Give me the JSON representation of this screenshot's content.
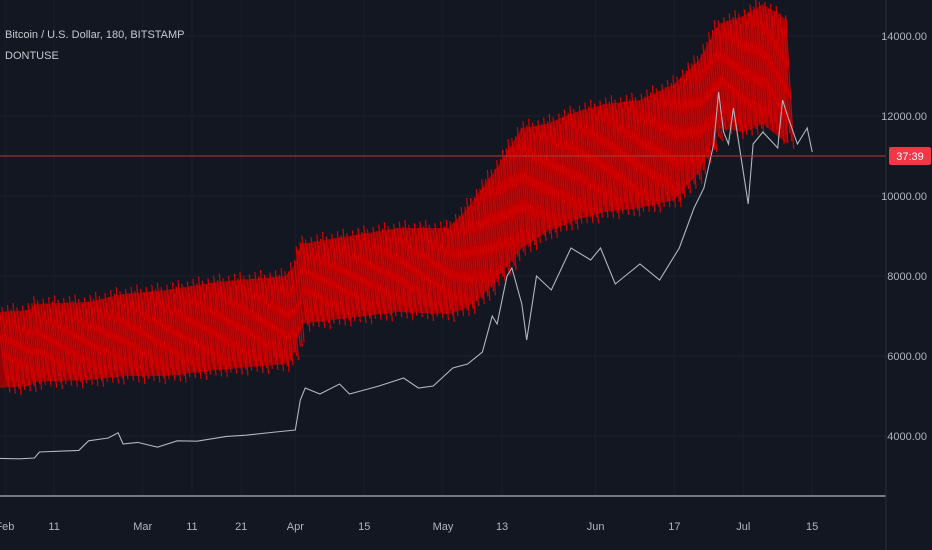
{
  "header": {
    "symbol_title": "Bitcoin / U.S. Dollar, 180, BITSTAMP",
    "indicator_name": "DONTUSE"
  },
  "price_tag": {
    "label": "37:39",
    "color": "#f23645"
  },
  "chart_data": {
    "type": "line",
    "ylim": [
      2500,
      14900
    ],
    "yticks": [
      4000,
      6000,
      8000,
      10000,
      12000,
      14000
    ],
    "ytick_labels": [
      "4000.00",
      "6000.00",
      "8000.00",
      "10000.00",
      "12000.00",
      "14000.00"
    ],
    "x_ticks": [
      {
        "label": "Feb",
        "date": "2019-02-01"
      },
      {
        "label": "11",
        "date": "2019-02-11"
      },
      {
        "label": "Mar",
        "date": "2019-03-01"
      },
      {
        "label": "11",
        "date": "2019-03-11"
      },
      {
        "label": "21",
        "date": "2019-03-21"
      },
      {
        "label": "Apr",
        "date": "2019-04-01"
      },
      {
        "label": "15",
        "date": "2019-04-15"
      },
      {
        "label": "May",
        "date": "2019-05-01"
      },
      {
        "label": "13",
        "date": "2019-05-13"
      },
      {
        "label": "Jun",
        "date": "2019-06-01"
      },
      {
        "label": "17",
        "date": "2019-06-17"
      },
      {
        "label": "Jul",
        "date": "2019-07-01"
      },
      {
        "label": "15",
        "date": "2019-07-15"
      }
    ],
    "xlim": [
      "2019-01-31",
      "2019-07-30"
    ],
    "current_price": 11000,
    "series": [
      {
        "color": "#b2b5be",
        "points": [
          [
            "2019-01-31",
            3440
          ],
          [
            "2019-02-04",
            3430
          ],
          [
            "2019-02-07",
            3450
          ],
          [
            "2019-02-08",
            3600
          ],
          [
            "2019-02-12",
            3620
          ],
          [
            "2019-02-16",
            3640
          ],
          [
            "2019-02-18",
            3880
          ],
          [
            "2019-02-22",
            3950
          ],
          [
            "2019-02-24",
            4080
          ],
          [
            "2019-02-25",
            3800
          ],
          [
            "2019-02-28",
            3840
          ],
          [
            "2019-03-04",
            3720
          ],
          [
            "2019-03-08",
            3880
          ],
          [
            "2019-03-12",
            3870
          ],
          [
            "2019-03-18",
            3990
          ],
          [
            "2019-03-22",
            4020
          ],
          [
            "2019-03-28",
            4100
          ],
          [
            "2019-04-01",
            4150
          ],
          [
            "2019-04-02",
            4900
          ],
          [
            "2019-04-03",
            5200
          ],
          [
            "2019-04-06",
            5050
          ],
          [
            "2019-04-10",
            5300
          ],
          [
            "2019-04-12",
            5050
          ],
          [
            "2019-04-18",
            5250
          ],
          [
            "2019-04-23",
            5450
          ],
          [
            "2019-04-26",
            5200
          ],
          [
            "2019-04-29",
            5250
          ],
          [
            "2019-05-03",
            5700
          ],
          [
            "2019-05-06",
            5800
          ],
          [
            "2019-05-09",
            6100
          ],
          [
            "2019-05-11",
            7000
          ],
          [
            "2019-05-12",
            6800
          ],
          [
            "2019-05-14",
            8000
          ],
          [
            "2019-05-15",
            8200
          ],
          [
            "2019-05-17",
            7300
          ],
          [
            "2019-05-18",
            6400
          ],
          [
            "2019-05-20",
            8000
          ],
          [
            "2019-05-23",
            7650
          ],
          [
            "2019-05-27",
            8700
          ],
          [
            "2019-05-31",
            8400
          ],
          [
            "2019-06-02",
            8700
          ],
          [
            "2019-06-05",
            7800
          ],
          [
            "2019-06-07",
            8000
          ],
          [
            "2019-06-10",
            8300
          ],
          [
            "2019-06-14",
            7900
          ],
          [
            "2019-06-18",
            8700
          ],
          [
            "2019-06-21",
            9700
          ],
          [
            "2019-06-23",
            10200
          ],
          [
            "2019-06-25",
            11300
          ],
          [
            "2019-06-26",
            12600
          ],
          [
            "2019-06-27",
            11600
          ],
          [
            "2019-06-28",
            11300
          ],
          [
            "2019-06-29",
            12200
          ],
          [
            "2019-07-01",
            10600
          ],
          [
            "2019-07-02",
            9800
          ],
          [
            "2019-07-03",
            11300
          ],
          [
            "2019-07-05",
            11600
          ],
          [
            "2019-07-08",
            11200
          ],
          [
            "2019-07-09",
            12400
          ],
          [
            "2019-07-10",
            12000
          ],
          [
            "2019-07-12",
            11300
          ],
          [
            "2019-07-14",
            11700
          ],
          [
            "2019-07-15",
            11100
          ]
        ]
      },
      {
        "type": "band",
        "color": "#c20000",
        "points": [
          [
            "2019-01-31",
            5200,
            7100
          ],
          [
            "2019-02-06",
            5250,
            7150
          ],
          [
            "2019-02-07",
            5350,
            7300
          ],
          [
            "2019-02-18",
            5400,
            7350
          ],
          [
            "2019-02-25",
            5500,
            7550
          ],
          [
            "2019-03-06",
            5500,
            7650
          ],
          [
            "2019-03-16",
            5650,
            7850
          ],
          [
            "2019-03-30",
            5800,
            8000
          ],
          [
            "2019-04-01",
            6100,
            8300
          ],
          [
            "2019-04-02",
            6800,
            8800
          ],
          [
            "2019-04-12",
            6950,
            9000
          ],
          [
            "2019-04-22",
            7100,
            9200
          ],
          [
            "2019-05-02",
            7050,
            9200
          ],
          [
            "2019-05-05",
            7150,
            9550
          ],
          [
            "2019-05-09",
            7500,
            10200
          ],
          [
            "2019-05-13",
            8100,
            10900
          ],
          [
            "2019-05-17",
            8700,
            11700
          ],
          [
            "2019-05-22",
            9100,
            11800
          ],
          [
            "2019-05-28",
            9400,
            12100
          ],
          [
            "2019-06-03",
            9600,
            12300
          ],
          [
            "2019-06-10",
            9700,
            12400
          ],
          [
            "2019-06-17",
            9900,
            12800
          ],
          [
            "2019-06-22",
            10600,
            13400
          ],
          [
            "2019-06-26",
            11700,
            14300
          ],
          [
            "2019-07-01",
            11600,
            14500
          ],
          [
            "2019-07-05",
            11800,
            14800
          ],
          [
            "2019-07-10",
            11300,
            14400
          ]
        ]
      }
    ]
  }
}
